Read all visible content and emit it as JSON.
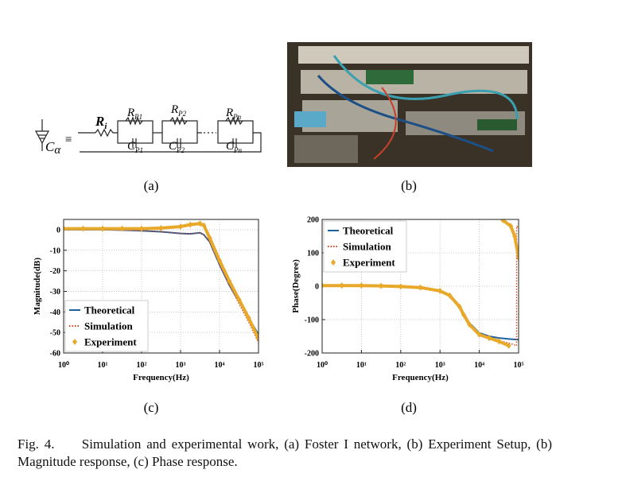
{
  "figure": {
    "circuit": {
      "labels": [
        {
          "main": "R",
          "sub": "i"
        },
        {
          "main": "R",
          "sub": "P1"
        },
        {
          "main": "C",
          "sub": "P1"
        },
        {
          "main": "R",
          "sub": "P2"
        },
        {
          "main": "C",
          "sub": "P2"
        },
        {
          "main": "R",
          "sub": "Pn"
        },
        {
          "main": "C",
          "sub": "Pn"
        },
        {
          "main": "C",
          "sub": "α"
        }
      ],
      "equiv": "≡"
    },
    "panel_labels": [
      "(a)",
      "(b)",
      "(c)",
      "(d)"
    ],
    "caption": {
      "number": "Fig. 4.",
      "text": "Simulation and experimental work, (a) Foster I network, (b) Experiment Setup, (b) Magnitude response, (c) Phase response."
    }
  },
  "chart_data": [
    {
      "type": "line",
      "xlabel": "Frequency(Hz)",
      "ylabel": "Magnitude(dB)",
      "xscale": "log",
      "xlim": [
        1,
        100000
      ],
      "xticks": [
        {
          "value": 1,
          "label": "10⁰"
        },
        {
          "value": 10,
          "label": "10¹"
        },
        {
          "value": 100,
          "label": "10²"
        },
        {
          "value": 1000,
          "label": "10³"
        },
        {
          "value": 10000,
          "label": "10⁴"
        },
        {
          "value": 100000,
          "label": "10⁵"
        }
      ],
      "ylim": [
        -60,
        5
      ],
      "yticks": [
        0,
        -10,
        -20,
        -30,
        -40,
        -50,
        -60
      ],
      "grid": true,
      "legend": "lower left",
      "series": [
        {
          "name": "Theoretical",
          "color": "#1f5f9e",
          "style": "solid",
          "x": [
            1,
            3.16,
            10,
            31.6,
            100,
            316,
            1000,
            1778,
            3162,
            3981,
            5623,
            10000,
            17783,
            31623,
            56234,
            100000
          ],
          "values": [
            0,
            0,
            0,
            -0.2,
            -0.5,
            -1,
            -1.8,
            -2,
            -1.5,
            -2.5,
            -6,
            -17,
            -27,
            -35,
            -43,
            -51
          ]
        },
        {
          "name": "Simulation",
          "color": "#d9401a",
          "style": "dotted",
          "x": [
            1,
            3.16,
            10,
            31.6,
            100,
            316,
            1000,
            1778,
            3162,
            3981,
            5623,
            10000,
            17783,
            31623,
            56234,
            100000
          ],
          "values": [
            0,
            0,
            0,
            -0.2,
            -0.5,
            -1,
            -1.8,
            -2,
            -1.5,
            -2.5,
            -6,
            -17,
            -27,
            -36,
            -45,
            -55
          ]
        },
        {
          "name": "Experiment",
          "color": "#e8a92a",
          "style": "solid",
          "marker": "diamond",
          "x": [
            1,
            3.16,
            10,
            31.6,
            100,
            316,
            1000,
            1778,
            3162,
            3981,
            5623,
            10000,
            17783,
            31623,
            56234,
            100000
          ],
          "values": [
            0.5,
            0.5,
            0.5,
            0.5,
            0.5,
            0.8,
            1.5,
            2.5,
            3,
            2,
            -4,
            -15,
            -25,
            -34,
            -43,
            -53
          ]
        }
      ]
    },
    {
      "type": "line",
      "xlabel": "Frequency(Hz)",
      "ylabel": "Phase(Degree)",
      "xscale": "log",
      "xlim": [
        1,
        100000
      ],
      "xticks": [
        {
          "value": 1,
          "label": "10⁰"
        },
        {
          "value": 10,
          "label": "10¹"
        },
        {
          "value": 100,
          "label": "10²"
        },
        {
          "value": 1000,
          "label": "10³"
        },
        {
          "value": 10000,
          "label": "10⁴"
        },
        {
          "value": 100000,
          "label": "10⁵"
        }
      ],
      "ylim": [
        -200,
        200
      ],
      "yticks": [
        -200,
        -100,
        0,
        100,
        200
      ],
      "grid": true,
      "legend": "upper left",
      "series": [
        {
          "name": "Theoretical",
          "color": "#1f5f9e",
          "style": "solid",
          "x": [
            1,
            3.16,
            10,
            31.6,
            100,
            316,
            1000,
            1778,
            3162,
            3981,
            5623,
            10000,
            17783,
            31623,
            56234,
            100000
          ],
          "values": [
            0,
            0,
            0,
            0,
            -2,
            -5,
            -15,
            -30,
            -60,
            -80,
            -110,
            -140,
            -150,
            -155,
            -158,
            -160
          ]
        },
        {
          "name": "Simulation",
          "color": "#d9401a",
          "style": "dotted",
          "x": [
            1,
            3.16,
            10,
            31.6,
            100,
            316,
            1000,
            1778,
            3162,
            3981,
            5623,
            10000,
            17783,
            31623,
            56234,
            89125,
            89125,
            100000
          ],
          "values": [
            0,
            0,
            0,
            0,
            -2,
            -5,
            -15,
            -30,
            -62,
            -85,
            -115,
            -145,
            -155,
            -163,
            -170,
            -178,
            180,
            175
          ]
        },
        {
          "name": "Experiment",
          "color": "#e8a92a",
          "style": "solid",
          "marker": "diamond",
          "x": [
            1,
            3.16,
            10,
            31.6,
            100,
            316,
            1000,
            1778,
            3162,
            3981,
            5623,
            10000,
            17783,
            31623,
            56234,
            56234,
            39811,
            63096,
            79433,
            100000
          ],
          "values": [
            2,
            2,
            2,
            1,
            -1,
            -4,
            -14,
            -28,
            -62,
            -85,
            -115,
            -145,
            -155,
            -165,
            -178,
            null,
            198,
            180,
            150,
            85
          ]
        }
      ]
    }
  ]
}
